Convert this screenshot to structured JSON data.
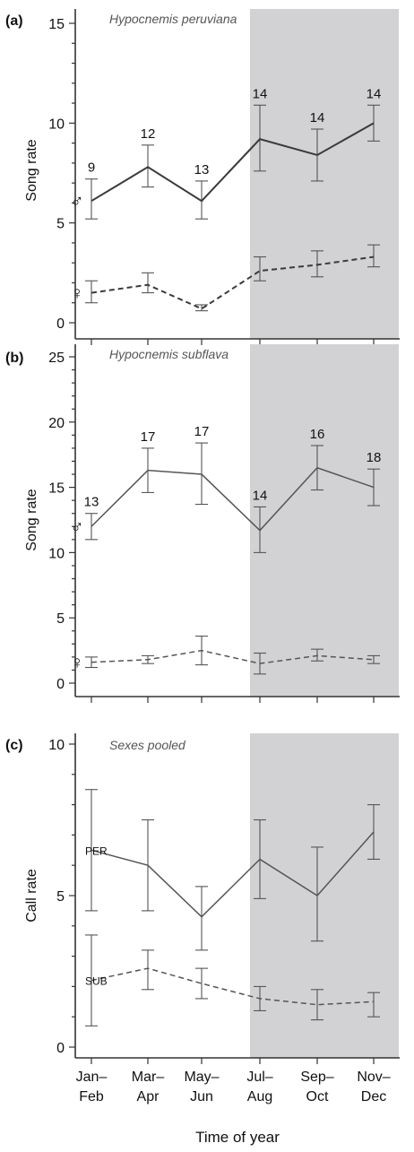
{
  "figure": {
    "xlabel": "Time of year",
    "categories": [
      "Jan–\nFeb",
      "Mar–\nApr",
      "May–\nJun",
      "Jul–\nAug",
      "Sep–\nOct",
      "Nov–\nDec"
    ]
  },
  "colors": {
    "shade": "#d2d2d4",
    "line": "#555555",
    "axis": "#333333",
    "text": "#111111"
  },
  "chart_data": [
    {
      "type": "line",
      "panel_label": "(a)",
      "title": "Hypocnemis peruviana",
      "ylabel": "Song rate",
      "ylim": [
        0,
        15
      ],
      "yticks": [
        0,
        5,
        10,
        15
      ],
      "shaded_categories": [
        "Jul–Aug",
        "Sep–Oct",
        "Nov–Dec"
      ],
      "series": [
        {
          "name": "♂",
          "style": "solid",
          "values": [
            6.1,
            7.8,
            6.1,
            9.2,
            8.4,
            10.0
          ],
          "err_low": [
            5.2,
            6.8,
            5.2,
            7.6,
            7.1,
            9.1
          ],
          "err_high": [
            7.2,
            8.9,
            7.1,
            10.9,
            9.7,
            10.9
          ],
          "n_labels": [
            "9",
            "12",
            "13",
            "14",
            "14",
            "14"
          ]
        },
        {
          "name": "♀",
          "style": "dashed",
          "values": [
            1.5,
            1.9,
            0.7,
            2.6,
            2.9,
            3.3
          ],
          "err_low": [
            1.0,
            1.5,
            0.6,
            2.1,
            2.3,
            2.8
          ],
          "err_high": [
            2.1,
            2.5,
            0.9,
            3.3,
            3.6,
            3.9
          ]
        }
      ]
    },
    {
      "type": "line",
      "panel_label": "(b)",
      "title": "Hypocnemis subflava",
      "ylabel": "Song rate",
      "ylim": [
        0,
        25
      ],
      "yticks": [
        0,
        5,
        10,
        15,
        20,
        25
      ],
      "shaded_categories": [
        "Jul–Aug",
        "Sep–Oct",
        "Nov–Dec"
      ],
      "series": [
        {
          "name": "♂",
          "style": "solid",
          "values": [
            12.0,
            16.3,
            16.0,
            11.7,
            16.5,
            15.0
          ],
          "err_low": [
            11.0,
            14.6,
            13.7,
            10.0,
            14.8,
            13.6
          ],
          "err_high": [
            13.0,
            18.0,
            18.4,
            13.5,
            18.2,
            16.4
          ],
          "n_labels": [
            "13",
            "17",
            "17",
            "14",
            "16",
            "18"
          ]
        },
        {
          "name": "♀",
          "style": "dashed",
          "values": [
            1.6,
            1.8,
            2.5,
            1.5,
            2.1,
            1.8
          ],
          "err_low": [
            1.2,
            1.5,
            1.4,
            0.7,
            1.7,
            1.5
          ],
          "err_high": [
            2.0,
            2.1,
            3.6,
            2.3,
            2.6,
            2.1
          ]
        }
      ]
    },
    {
      "type": "line",
      "panel_label": "(c)",
      "title": "Sexes pooled",
      "ylabel": "Call rate",
      "ylim": [
        0,
        10
      ],
      "yticks": [
        0,
        5,
        10
      ],
      "shaded_categories": [
        "Jul–Aug",
        "Sep–Oct",
        "Nov–Dec"
      ],
      "series": [
        {
          "name": "PER",
          "style": "solid",
          "values": [
            6.5,
            6.0,
            4.3,
            6.2,
            5.0,
            7.1
          ],
          "err_low": [
            4.5,
            4.5,
            3.2,
            4.9,
            3.5,
            6.2
          ],
          "err_high": [
            8.5,
            7.5,
            5.3,
            7.5,
            6.6,
            8.0
          ]
        },
        {
          "name": "SUB",
          "style": "dashed",
          "values": [
            2.2,
            2.6,
            2.1,
            1.6,
            1.4,
            1.5
          ],
          "err_low": [
            0.7,
            1.9,
            1.6,
            1.2,
            0.9,
            1.0
          ],
          "err_high": [
            3.7,
            3.2,
            2.6,
            2.0,
            1.9,
            1.8
          ]
        }
      ]
    }
  ]
}
